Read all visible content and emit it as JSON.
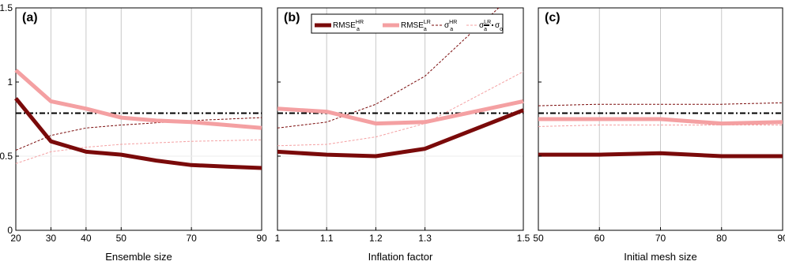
{
  "legend": {
    "entries": [
      {
        "key": "rmse_hr",
        "label": "RMSE",
        "sup": "HR",
        "sub": "a",
        "color": "#7a0a0a",
        "width": 5,
        "dash": ""
      },
      {
        "key": "rmse_lr",
        "label": "RMSE",
        "sup": "LR",
        "sub": "a",
        "color": "#f4a0a2",
        "width": 5,
        "dash": ""
      },
      {
        "key": "sigma_hr",
        "label": "σ",
        "sup": "HR",
        "sub": "a",
        "color": "#7a0a0a",
        "width": 1,
        "dash": "3,2"
      },
      {
        "key": "sigma_lr",
        "label": "σ",
        "sup": "LR",
        "sub": "a",
        "color": "#f4a0a2",
        "width": 1,
        "dash": "3,2"
      },
      {
        "key": "sigma_o",
        "label": "σ",
        "sup": "",
        "sub": "o",
        "color": "#000000",
        "width": 2,
        "dash": "7,3,2,3"
      }
    ]
  },
  "chart_data": [
    {
      "type": "line",
      "panel_label": "(a)",
      "xlabel": "Ensemble size",
      "ylabel": "",
      "xlim": [
        20,
        90
      ],
      "ylim": [
        0,
        1.5
      ],
      "xticks": [
        20,
        30,
        40,
        50,
        70,
        90
      ],
      "yticks": [
        0,
        0.5,
        1,
        1.5
      ],
      "ytick_labels": [
        "0",
        "0.5",
        "1",
        "1.5"
      ],
      "show_yticks": true,
      "grid": "x",
      "series": [
        {
          "key": "rmse_hr",
          "x": [
            20,
            30,
            40,
            50,
            60,
            70,
            80,
            90
          ],
          "y": [
            0.89,
            0.6,
            0.53,
            0.51,
            0.47,
            0.44,
            0.43,
            0.42
          ]
        },
        {
          "key": "rmse_lr",
          "x": [
            20,
            30,
            40,
            50,
            60,
            70,
            80,
            90
          ],
          "y": [
            1.08,
            0.87,
            0.82,
            0.76,
            0.74,
            0.73,
            0.71,
            0.69
          ]
        },
        {
          "key": "sigma_hr",
          "x": [
            20,
            30,
            40,
            50,
            70,
            90
          ],
          "y": [
            0.54,
            0.64,
            0.69,
            0.71,
            0.74,
            0.76
          ]
        },
        {
          "key": "sigma_lr",
          "x": [
            20,
            30,
            40,
            50,
            70,
            90
          ],
          "y": [
            0.45,
            0.53,
            0.56,
            0.58,
            0.6,
            0.61
          ]
        },
        {
          "key": "sigma_o",
          "x": [
            20,
            90
          ],
          "y": [
            0.79,
            0.79
          ]
        }
      ]
    },
    {
      "type": "line",
      "panel_label": "(b)",
      "xlabel": "Inflation factor",
      "ylabel": "",
      "xlim": [
        1,
        1.5
      ],
      "ylim": [
        0,
        1.5
      ],
      "xticks": [
        1,
        1.1,
        1.2,
        1.3,
        1.5
      ],
      "yticks": [
        0,
        0.5,
        1,
        1.5
      ],
      "show_yticks": false,
      "grid": "x",
      "series": [
        {
          "key": "rmse_hr",
          "x": [
            1,
            1.1,
            1.2,
            1.3,
            1.5
          ],
          "y": [
            0.53,
            0.51,
            0.5,
            0.55,
            0.81
          ]
        },
        {
          "key": "rmse_lr",
          "x": [
            1,
            1.1,
            1.2,
            1.3,
            1.5
          ],
          "y": [
            0.82,
            0.8,
            0.72,
            0.73,
            0.87
          ]
        },
        {
          "key": "sigma_hr",
          "x": [
            1,
            1.1,
            1.2,
            1.3,
            1.4,
            1.45
          ],
          "y": [
            0.69,
            0.73,
            0.85,
            1.04,
            1.35,
            1.5
          ]
        },
        {
          "key": "sigma_lr",
          "x": [
            1,
            1.1,
            1.2,
            1.3,
            1.5
          ],
          "y": [
            0.57,
            0.58,
            0.63,
            0.72,
            1.07
          ]
        },
        {
          "key": "sigma_o",
          "x": [
            1,
            1.5
          ],
          "y": [
            0.79,
            0.79
          ]
        }
      ]
    },
    {
      "type": "line",
      "panel_label": "(c)",
      "xlabel": "Initial mesh size",
      "ylabel": "",
      "xlim": [
        50,
        90
      ],
      "ylim": [
        0,
        1.5
      ],
      "xticks": [
        50,
        60,
        70,
        80,
        90
      ],
      "yticks": [
        0,
        0.5,
        1,
        1.5
      ],
      "show_yticks": false,
      "grid": "x",
      "series": [
        {
          "key": "rmse_hr",
          "x": [
            50,
            60,
            70,
            80,
            90
          ],
          "y": [
            0.51,
            0.51,
            0.52,
            0.5,
            0.5
          ]
        },
        {
          "key": "rmse_lr",
          "x": [
            50,
            60,
            70,
            80,
            90
          ],
          "y": [
            0.75,
            0.75,
            0.75,
            0.72,
            0.73
          ]
        },
        {
          "key": "sigma_hr",
          "x": [
            50,
            60,
            70,
            80,
            90
          ],
          "y": [
            0.84,
            0.85,
            0.85,
            0.85,
            0.86
          ]
        },
        {
          "key": "sigma_lr",
          "x": [
            50,
            60,
            70,
            80,
            90
          ],
          "y": [
            0.7,
            0.71,
            0.71,
            0.71,
            0.71
          ]
        },
        {
          "key": "sigma_o",
          "x": [
            50,
            90
          ],
          "y": [
            0.79,
            0.79
          ]
        }
      ]
    }
  ]
}
